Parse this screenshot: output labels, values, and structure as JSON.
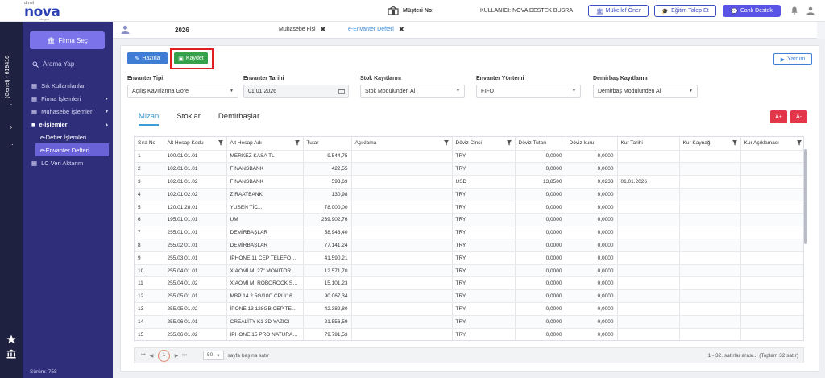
{
  "brand": {
    "small": "dinel",
    "name": "nova",
    "sub": "integral"
  },
  "header": {
    "customer_label": "Müşteri No:",
    "user_label": "KULLANICI: NOVA DESTEK BUSRA",
    "btn_suggest": "Mükellef Öner",
    "btn_training": "Eğitim Talep Et",
    "btn_support": "Canlı Destek"
  },
  "leftstrip": {
    "vertical_text": "(Genel) - 619416"
  },
  "sidebar": {
    "firma_button": "Firma Seç",
    "search_placeholder": "Arama Yap",
    "items": [
      {
        "label": "Sık Kullanılanlar"
      },
      {
        "label": "Firma İşlemleri",
        "arrow": "▾"
      },
      {
        "label": "Muhasebe İşlemleri",
        "arrow": "▾"
      },
      {
        "label": "e-İşlemler",
        "arrow": "▴"
      },
      {
        "label": "e-Defter İşlemleri"
      },
      {
        "label": "e-Envanter Defteri"
      },
      {
        "label": "LC Veri Aktarım"
      }
    ],
    "version": "Sürüm: 758"
  },
  "tabbar": {
    "year": "2026",
    "tabs": [
      {
        "label": "Muhasebe Fişi",
        "close": "✖"
      },
      {
        "label": "e-Envanter Defteri",
        "close": "✖"
      }
    ]
  },
  "toolbar": {
    "prepare": "Hazırla",
    "save": "Kaydet",
    "help": "Yardım"
  },
  "filters": {
    "type_label": "Envanter Tipi",
    "type_value": "Açılış Kayıtlarına Göre",
    "date_label": "Envanter Tarihi",
    "date_value": "01.01.2026",
    "stock_label": "Stok Kayıtlarını",
    "stock_value": "Stok Modülünden Al",
    "method_label": "Envanter Yöntemi",
    "method_value": "FIFO",
    "fixed_label": "Demirbaş Kayıtlarını",
    "fixed_value": "Demirbaş Modülünden Al"
  },
  "subtabs": [
    "Mizan",
    "Stoklar",
    "Demirbaşlar"
  ],
  "font_buttons": {
    "increase": "A+",
    "decrease": "A-"
  },
  "grid": {
    "columns": [
      "Sıra No",
      "Alt Hesap Kodu",
      "Alt Hesap Adı",
      "Tutar",
      "Açıklama",
      "Döviz Cinsi",
      "Döviz Tutarı",
      "Döviz kuru",
      "Kur Tarihi",
      "Kur Kaynağı",
      "Kur Açıklaması"
    ],
    "rows": [
      [
        "1",
        "100.01.01.01",
        "MERKEZ KASA TL",
        "9.544,75",
        "",
        "TRY",
        "0,0000",
        "0,0000",
        "",
        "",
        ""
      ],
      [
        "2",
        "102.01.01.01",
        "FİNANSBANK",
        "422,55",
        "",
        "TRY",
        "0,0000",
        "0,0000",
        "",
        "",
        ""
      ],
      [
        "3",
        "102.01.01.02",
        "FİNANSBANK",
        "593,69",
        "",
        "USD",
        "13,8500",
        "0,0233",
        "01.01.2026",
        "",
        ""
      ],
      [
        "4",
        "102.01.02.02",
        "ZİRAATBANK",
        "130,98",
        "",
        "TRY",
        "0,0000",
        "0,0000",
        "",
        "",
        ""
      ],
      [
        "5",
        "120.01.28.01",
        "YUSEN                   TİC...",
        "78.000,00",
        "",
        "TRY",
        "0,0000",
        "0,0000",
        "",
        "",
        ""
      ],
      [
        "6",
        "195.01.01.01",
        "UM",
        "239.902,76",
        "",
        "TRY",
        "0,0000",
        "0,0000",
        "",
        "",
        ""
      ],
      [
        "7",
        "255.01.01.01",
        "DEMİRBAŞLAR",
        "58.943,40",
        "",
        "TRY",
        "0,0000",
        "0,0000",
        "",
        "",
        ""
      ],
      [
        "8",
        "255.02.01.01",
        "DEMİRBAŞLAR",
        "77.141,24",
        "",
        "TRY",
        "0,0000",
        "0,0000",
        "",
        "",
        ""
      ],
      [
        "9",
        "255.03.01.01",
        "IPHONE 11 CEP TELEFONU...",
        "41.590,21",
        "",
        "TRY",
        "0,0000",
        "0,0000",
        "",
        "",
        ""
      ],
      [
        "10",
        "255.04.01.01",
        "XİAOMİ Mİ 27\" MONİTÖR",
        "12.571,70",
        "",
        "TRY",
        "0,0000",
        "0,0000",
        "",
        "",
        ""
      ],
      [
        "11",
        "255.04.01.02",
        "XİAOMİ Mİ ROBOROCK S6 ...",
        "15.101,23",
        "",
        "TRY",
        "0,0000",
        "0,0000",
        "",
        "",
        ""
      ],
      [
        "12",
        "255.05.01.01",
        "MBP 14.2 5G/10C CPU/16C...",
        "90.067,34",
        "",
        "TRY",
        "0,0000",
        "0,0000",
        "",
        "",
        ""
      ],
      [
        "13",
        "255.05.01.02",
        "İPONE 13 128GB CEP TELE...",
        "42.382,80",
        "",
        "TRY",
        "0,0000",
        "0,0000",
        "",
        "",
        ""
      ],
      [
        "14",
        "255.06.01.01",
        "CREALİTY K1 3D YAZICI",
        "21.556,59",
        "",
        "TRY",
        "0,0000",
        "0,0000",
        "",
        "",
        ""
      ],
      [
        "15",
        "255.06.01.02",
        "IPHONE 15 PRO NATURAL ...",
        "79.791,53",
        "",
        "TRY",
        "0,0000",
        "0,0000",
        "",
        "",
        ""
      ]
    ]
  },
  "pager": {
    "first": "⏮",
    "prev": "◀",
    "current": "1",
    "next": "▶",
    "last": "⏭",
    "page_size": "50",
    "page_size_label": "sayfa başına satır",
    "info": "1 - 32. satırlar arası... (Toplam 32 satır)"
  },
  "colors": {
    "sidebar": "#2f2e7a",
    "leftstrip": "#1f2140",
    "accent": "#5a54e6",
    "save": "#35a14a",
    "prepare": "#3f7dd5",
    "highlight_frame": "#e02020",
    "font_btn": "#e3364a"
  }
}
